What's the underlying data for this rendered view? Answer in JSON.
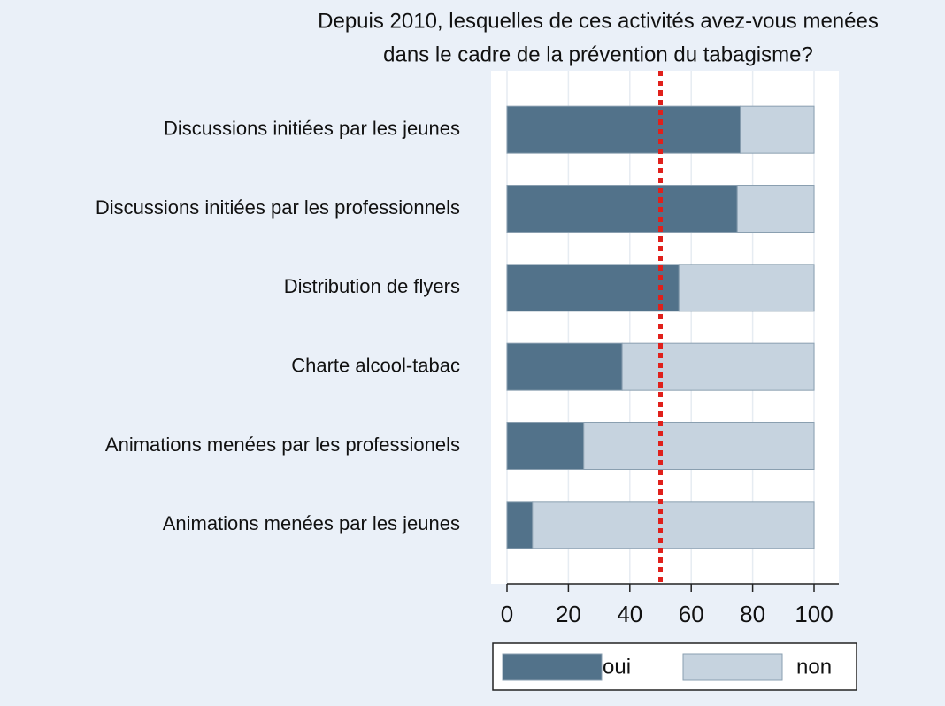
{
  "chart_data": {
    "type": "stacked_barh",
    "title": [
      "Depuis 2010, lesquelles de ces activités avez-vous menées",
      "dans le cadre de la prévention du tabagisme?"
    ],
    "categories": [
      "Discussions initiées par les jeunes",
      "Discussions initiées par les professionnels",
      "Distribution de flyers",
      "Charte alcool-tabac",
      "Animations menées par les professionels",
      "Animations menées par les jeunes"
    ],
    "series": [
      {
        "name": "oui",
        "color": "#52728a",
        "values": [
          76,
          75,
          56,
          37.5,
          25,
          8.3
        ]
      },
      {
        "name": "non",
        "color": "#c6d3df",
        "values": [
          24,
          25,
          44,
          62.5,
          75,
          91.7
        ]
      }
    ],
    "xlim": [
      0,
      100
    ],
    "xticks": [
      0,
      20,
      40,
      60,
      80,
      100
    ],
    "grid": true,
    "reference_line": {
      "value": 50,
      "color": "#e0201b"
    },
    "legend": "bottom"
  }
}
